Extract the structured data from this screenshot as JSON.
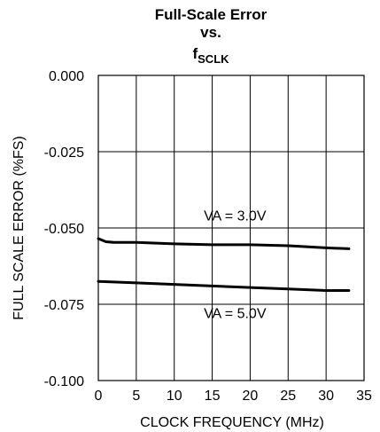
{
  "chart_data": {
    "type": "line",
    "title_lines": [
      "Full-Scale Error",
      "vs."
    ],
    "title_sub": {
      "main": "f",
      "sub": "SCLK"
    },
    "xlabel": "CLOCK FREQUENCY (MHz)",
    "ylabel": "FULL SCALE ERROR (%FS)",
    "xlim": [
      0,
      35
    ],
    "ylim": [
      -0.1,
      0.0
    ],
    "xticks": [
      0,
      5,
      10,
      15,
      20,
      25,
      30,
      35
    ],
    "xtick_labels": [
      "0",
      "5",
      "10",
      "15",
      "20",
      "25",
      "30",
      "35"
    ],
    "yticks": [
      0.0,
      -0.025,
      -0.05,
      -0.075,
      -0.1
    ],
    "ytick_labels": [
      "0.000",
      "-0.025",
      "-0.050",
      "-0.075",
      "-0.100"
    ],
    "grid": true,
    "series": [
      {
        "name": "VA = 3.0V",
        "x": [
          0,
          1,
          2,
          5,
          10,
          15,
          20,
          25,
          30,
          33
        ],
        "y": [
          -0.0535,
          -0.0545,
          -0.0547,
          -0.0547,
          -0.0552,
          -0.0555,
          -0.0555,
          -0.0558,
          -0.0565,
          -0.0568
        ]
      },
      {
        "name": "VA = 5.0V",
        "x": [
          0,
          2,
          5,
          10,
          15,
          20,
          25,
          30,
          33
        ],
        "y": [
          -0.0675,
          -0.0677,
          -0.068,
          -0.0685,
          -0.069,
          -0.0695,
          -0.07,
          -0.0705,
          -0.0705
        ]
      }
    ],
    "annotations": [
      {
        "text": "VA = 3.0V",
        "x": 18,
        "y": -0.0475
      },
      {
        "text": "VA = 5.0V",
        "x": 18,
        "y": -0.0795
      }
    ]
  }
}
